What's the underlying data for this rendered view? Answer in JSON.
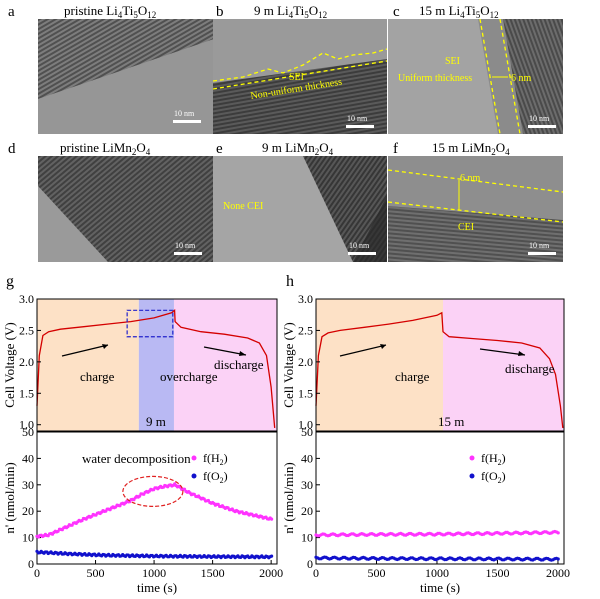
{
  "tem": {
    "a": {
      "label": "a",
      "title_pre": "pristine Li",
      "s1": "4",
      "mid": "Ti",
      "s2": "5",
      "mid2": "O",
      "s3": "12",
      "scale": "10 nm"
    },
    "b": {
      "label": "b",
      "title_pre": "9 m Li",
      "s1": "4",
      "mid": "Ti",
      "s2": "5",
      "mid2": "O",
      "s3": "12",
      "scale": "10 nm",
      "ann1": "SEI",
      "ann2": "Non-uniform thickness"
    },
    "c": {
      "label": "c",
      "title_pre": "15 m Li",
      "s1": "4",
      "mid": "Ti",
      "s2": "5",
      "mid2": "O",
      "s3": "12",
      "scale": "10 nm",
      "ann1": "SEI",
      "ann2": "Uniform thickness",
      "ann3": "6 nm"
    },
    "d": {
      "label": "d",
      "title_pre": "pristine LiMn",
      "s1": "2",
      "mid": "O",
      "s2": "4",
      "scale": "10 nm"
    },
    "e": {
      "label": "e",
      "title_pre": "9 m LiMn",
      "s1": "2",
      "mid": "O",
      "s2": "4",
      "scale": "10 nm",
      "ann1": "None CEI"
    },
    "f": {
      "label": "f",
      "title_pre": "15 m LiMn",
      "s1": "2",
      "mid": "O",
      "s2": "4",
      "scale": "10 nm",
      "ann1": "6 nm",
      "ann2": "CEI"
    }
  },
  "chart_data": [
    {
      "type": "line",
      "panel": "g",
      "region_label": "9 m",
      "ylabel": "Cell Voltage (V)",
      "ylim": [
        0.9,
        3.0
      ],
      "yticks": [
        "1.0",
        "1.5",
        "2.0",
        "2.5",
        "3.0"
      ],
      "xlim": [
        0,
        2050
      ],
      "regions": [
        {
          "name": "charge",
          "from": 0,
          "to": 870,
          "color": "#fde1c6"
        },
        {
          "name": "overcharge",
          "from": 870,
          "to": 1170,
          "color": "#b9b9f3"
        },
        {
          "name": "discharge",
          "from": 1170,
          "to": 2050,
          "color": "#fbd2f6"
        }
      ],
      "annotations": [
        "charge",
        "overcharge",
        "discharge"
      ],
      "series": [
        {
          "name": "voltage",
          "color": "#d40000",
          "x": [
            0,
            20,
            50,
            100,
            200,
            400,
            600,
            800,
            1000,
            1150,
            1175,
            1180,
            1230,
            1400,
            1600,
            1800,
            1900,
            1960,
            2000,
            2030
          ],
          "y": [
            1.3,
            2.1,
            2.42,
            2.48,
            2.52,
            2.56,
            2.6,
            2.64,
            2.7,
            2.78,
            2.82,
            2.64,
            2.55,
            2.48,
            2.44,
            2.38,
            2.3,
            2.1,
            1.6,
            0.95
          ]
        }
      ]
    },
    {
      "type": "scatter",
      "panel": "g",
      "xlabel": "time (s)",
      "ylabel": "n' (nmol/min)",
      "ylim": [
        0,
        50
      ],
      "xlim": [
        0,
        2050
      ],
      "yticks": [
        "0",
        "10",
        "20",
        "30",
        "40",
        "50"
      ],
      "xticks": [
        "0",
        "500",
        "1000",
        "1500",
        "2000"
      ],
      "annotation": "water decomposition",
      "legend": [
        {
          "name": "f(H2)",
          "color": "#ff33ff"
        },
        {
          "name": "f(O2)",
          "color": "#1111cc"
        }
      ],
      "series": [
        {
          "name": "f(H2)",
          "x": [
            0,
            100,
            200,
            400,
            600,
            800,
            900,
            1000,
            1100,
            1180,
            1300,
            1500,
            1700,
            1900,
            2000
          ],
          "y": [
            10.5,
            11,
            13,
            17,
            20.5,
            24,
            26.5,
            28.5,
            29.5,
            30,
            27,
            23,
            20,
            18,
            17
          ]
        },
        {
          "name": "f(O2)",
          "x": [
            0,
            100,
            300,
            600,
            1000,
            1500,
            2000
          ],
          "y": [
            4.5,
            4.3,
            3.8,
            3.3,
            3,
            2.8,
            2.7
          ]
        }
      ]
    },
    {
      "type": "line",
      "panel": "h",
      "region_label": "15 m",
      "ylabel": "Cell Voltage (V)",
      "ylim": [
        0.9,
        3.0
      ],
      "yticks": [
        "1.0",
        "1.5",
        "2.0",
        "2.5",
        "3.0"
      ],
      "xlim": [
        0,
        2050
      ],
      "regions": [
        {
          "name": "charge",
          "from": 0,
          "to": 1050,
          "color": "#fde1c6"
        },
        {
          "name": "discharge",
          "from": 1050,
          "to": 2050,
          "color": "#fbd2f6"
        }
      ],
      "annotations": [
        "charge",
        "discharge"
      ],
      "series": [
        {
          "name": "voltage",
          "color": "#d40000",
          "x": [
            0,
            20,
            50,
            100,
            200,
            400,
            600,
            800,
            1000,
            1040,
            1050,
            1100,
            1300,
            1500,
            1700,
            1850,
            1930,
            1980,
            2020,
            2040
          ],
          "y": [
            1.3,
            2.1,
            2.4,
            2.46,
            2.5,
            2.55,
            2.6,
            2.66,
            2.74,
            2.78,
            2.48,
            2.4,
            2.37,
            2.34,
            2.3,
            2.22,
            2.05,
            1.8,
            1.3,
            0.95
          ]
        }
      ]
    },
    {
      "type": "scatter",
      "panel": "h",
      "xlabel": "time (s)",
      "ylabel": "n' (nmol/min)",
      "ylim": [
        0,
        50
      ],
      "xlim": [
        0,
        2050
      ],
      "yticks": [
        "0",
        "10",
        "20",
        "30",
        "40",
        "50"
      ],
      "xticks": [
        "0",
        "500",
        "1000",
        "1500",
        "2000"
      ],
      "legend": [
        {
          "name": "f(H2)",
          "color": "#ff33ff"
        },
        {
          "name": "f(O2)",
          "color": "#1111cc"
        }
      ],
      "series": [
        {
          "name": "f(H2)",
          "x": [
            0,
            500,
            1000,
            1500,
            2000
          ],
          "y": [
            11,
            11.2,
            11.3,
            11.6,
            12
          ]
        },
        {
          "name": "f(O2)",
          "x": [
            0,
            500,
            1000,
            1500,
            2000
          ],
          "y": [
            2.3,
            2.1,
            2.0,
            1.9,
            1.8
          ]
        }
      ]
    }
  ],
  "panel_labels": {
    "g": "g",
    "h": "h"
  }
}
